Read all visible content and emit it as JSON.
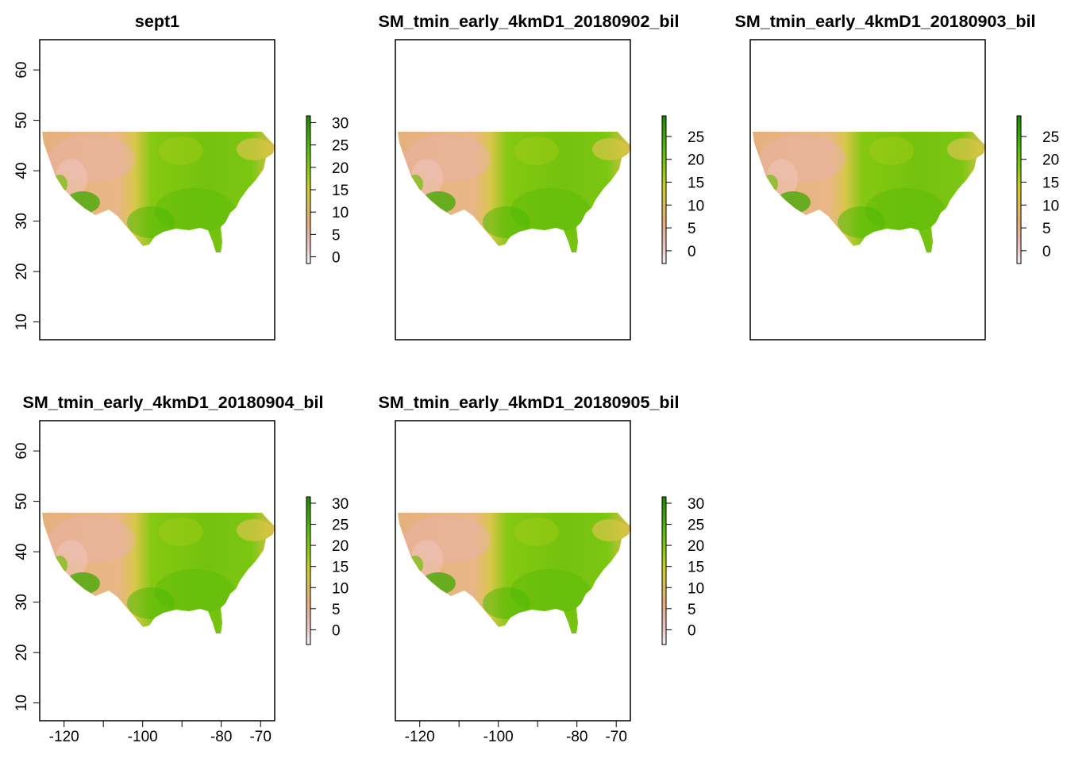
{
  "figure": {
    "colormap": [
      "#f2f2f2",
      "#ecc2c2",
      "#e8ae7e",
      "#dcc24a",
      "#ccd21e",
      "#8ccb10",
      "#56be0a",
      "#33a100",
      "#1c8a00"
    ],
    "panels": [
      {
        "id": "p1",
        "title": "sept1",
        "legend": {
          "ticks": [
            "30",
            "25",
            "20",
            "15",
            "10",
            "5",
            "0"
          ],
          "max": 31.5,
          "min": -1.5
        },
        "y_axis": [
          "60",
          "50",
          "40",
          "30",
          "20",
          "10"
        ],
        "x_axis": []
      },
      {
        "id": "p2",
        "title": "SM_tmin_early_4kmD1_20180902_bil",
        "legend": {
          "ticks": [
            "25",
            "20",
            "15",
            "10",
            "5",
            "0"
          ],
          "max": 29.5,
          "min": -2.8
        },
        "y_axis": [],
        "x_axis": []
      },
      {
        "id": "p3",
        "title": "SM_tmin_early_4kmD1_20180903_bil",
        "legend": {
          "ticks": [
            "25",
            "20",
            "15",
            "10",
            "5",
            "0"
          ],
          "max": 29.5,
          "min": -2.8
        },
        "y_axis": [],
        "x_axis": []
      },
      {
        "id": "p4",
        "title": "SM_tmin_early_4kmD1_20180904_bil",
        "legend": {
          "ticks": [
            "30",
            "25",
            "20",
            "15",
            "10",
            "5",
            "0"
          ],
          "max": 31.5,
          "min": -3.5
        },
        "y_axis": [
          "60",
          "50",
          "40",
          "30",
          "20",
          "10"
        ],
        "x_axis": [
          "-120",
          "-100",
          "-80",
          "-70"
        ]
      },
      {
        "id": "p5",
        "title": "SM_tmin_early_4kmD1_20180905_bil",
        "legend": {
          "ticks": [
            "30",
            "25",
            "20",
            "15",
            "10",
            "5",
            "0"
          ],
          "max": 31.5,
          "min": -3.5
        },
        "y_axis": [],
        "x_axis": [
          "-120",
          "-100",
          "-80",
          "-70"
        ]
      }
    ]
  }
}
